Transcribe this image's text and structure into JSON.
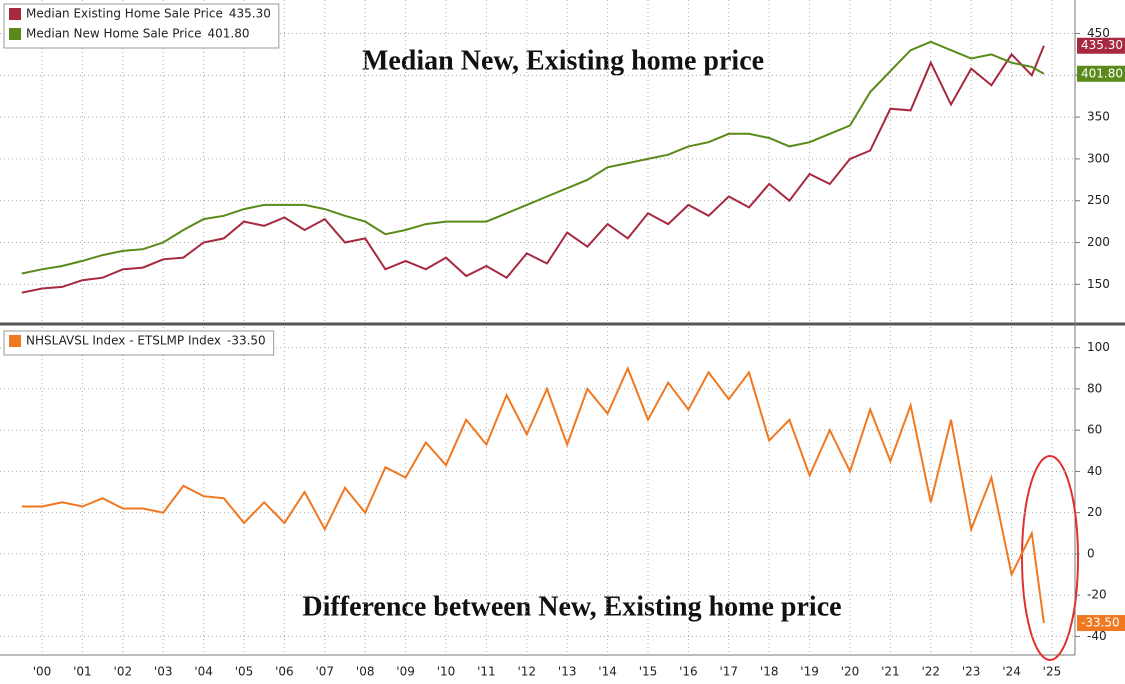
{
  "chart_data": [
    {
      "type": "line",
      "title": "Median New, Existing home price",
      "x": [
        2000,
        2000.5,
        2001,
        2001.5,
        2002,
        2002.5,
        2003,
        2003.5,
        2004,
        2004.5,
        2005,
        2005.5,
        2006,
        2006.5,
        2007,
        2007.5,
        2008,
        2008.5,
        2009,
        2009.5,
        2010,
        2010.5,
        2011,
        2011.5,
        2012,
        2012.5,
        2013,
        2013.5,
        2014,
        2014.5,
        2015,
        2015.5,
        2016,
        2016.5,
        2017,
        2017.5,
        2018,
        2018.5,
        2019,
        2019.5,
        2020,
        2020.5,
        2021,
        2021.5,
        2022,
        2022.5,
        2023,
        2023.5,
        2024,
        2024.5,
        2025,
        2025.3
      ],
      "series": [
        {
          "name": "Median Existing Home Sale Price",
          "last_value_label": "435.30",
          "color": "#a6293f",
          "values": [
            140,
            145,
            147,
            155,
            158,
            168,
            170,
            180,
            182,
            200,
            205,
            225,
            220,
            230,
            215,
            228,
            200,
            205,
            168,
            178,
            168,
            182,
            160,
            172,
            158,
            187,
            175,
            212,
            195,
            222,
            205,
            235,
            222,
            245,
            232,
            255,
            242,
            270,
            250,
            282,
            270,
            300,
            310,
            360,
            358,
            415,
            365,
            408,
            388,
            425,
            400,
            435.3
          ]
        },
        {
          "name": "Median New Home Sale Price",
          "last_value_label": "401.80",
          "color": "#5a8a1a",
          "values": [
            163,
            168,
            172,
            178,
            185,
            190,
            192,
            200,
            215,
            228,
            232,
            240,
            245,
            245,
            245,
            240,
            232,
            225,
            210,
            215,
            222,
            225,
            225,
            225,
            235,
            245,
            255,
            265,
            275,
            290,
            295,
            300,
            305,
            315,
            320,
            330,
            330,
            325,
            315,
            320,
            330,
            340,
            380,
            405,
            430,
            440,
            430,
            420,
            425,
            415,
            410,
            401.8
          ]
        }
      ],
      "ylim": [
        105,
        490
      ],
      "yticks": [
        150,
        200,
        250,
        300,
        350,
        400,
        450
      ],
      "grid": true
    },
    {
      "type": "line",
      "title": "Difference between New, Existing home price",
      "x": [
        2000,
        2000.5,
        2001,
        2001.5,
        2002,
        2002.5,
        2003,
        2003.5,
        2004,
        2004.5,
        2005,
        2005.5,
        2006,
        2006.5,
        2007,
        2007.5,
        2008,
        2008.5,
        2009,
        2009.5,
        2010,
        2010.5,
        2011,
        2011.5,
        2012,
        2012.5,
        2013,
        2013.5,
        2014,
        2014.5,
        2015,
        2015.5,
        2016,
        2016.5,
        2017,
        2017.5,
        2018,
        2018.5,
        2019,
        2019.5,
        2020,
        2020.5,
        2021,
        2021.5,
        2022,
        2022.5,
        2023,
        2023.5,
        2024,
        2024.5,
        2025,
        2025.3
      ],
      "series": [
        {
          "name": "NHSLAVSL Index - ETSLMP Index",
          "last_value_label": "-33.50",
          "color": "#f07820",
          "values": [
            23,
            23,
            25,
            23,
            27,
            22,
            22,
            20,
            33,
            28,
            27,
            15,
            25,
            15,
            30,
            12,
            32,
            20,
            42,
            37,
            54,
            43,
            65,
            53,
            77,
            58,
            80,
            53,
            80,
            68,
            90,
            65,
            83,
            70,
            88,
            75,
            88,
            55,
            65,
            38,
            60,
            40,
            70,
            45,
            72,
            25,
            65,
            12,
            37,
            -10,
            10,
            -33.5
          ]
        }
      ],
      "ylim": [
        -49,
        110
      ],
      "yticks": [
        -40,
        -20,
        0,
        20,
        40,
        60,
        80,
        100
      ],
      "grid": true,
      "xlim": [
        1999.46,
        2026.07
      ],
      "xticks": [
        {
          "value": 2000.5,
          "label": "'00"
        },
        {
          "value": 2001.5,
          "label": "'01"
        },
        {
          "value": 2002.5,
          "label": "'02"
        },
        {
          "value": 2003.5,
          "label": "'03"
        },
        {
          "value": 2004.5,
          "label": "'04"
        },
        {
          "value": 2005.5,
          "label": "'05"
        },
        {
          "value": 2006.5,
          "label": "'06"
        },
        {
          "value": 2007.5,
          "label": "'07"
        },
        {
          "value": 2008.5,
          "label": "'08"
        },
        {
          "value": 2009.5,
          "label": "'09"
        },
        {
          "value": 2010.5,
          "label": "'10"
        },
        {
          "value": 2011.5,
          "label": "'11"
        },
        {
          "value": 2012.5,
          "label": "'12"
        },
        {
          "value": 2013.5,
          "label": "'13"
        },
        {
          "value": 2014.5,
          "label": "'14"
        },
        {
          "value": 2015.5,
          "label": "'15"
        },
        {
          "value": 2016.5,
          "label": "'16"
        },
        {
          "value": 2017.5,
          "label": "'17"
        },
        {
          "value": 2018.5,
          "label": "'18"
        },
        {
          "value": 2019.5,
          "label": "'19"
        },
        {
          "value": 2020.5,
          "label": "'20"
        },
        {
          "value": 2021.5,
          "label": "'21"
        },
        {
          "value": 2022.5,
          "label": "'22"
        },
        {
          "value": 2023.5,
          "label": "'23"
        },
        {
          "value": 2024.5,
          "label": "'24"
        },
        {
          "value": 2025.5,
          "label": "'25"
        }
      ]
    }
  ]
}
